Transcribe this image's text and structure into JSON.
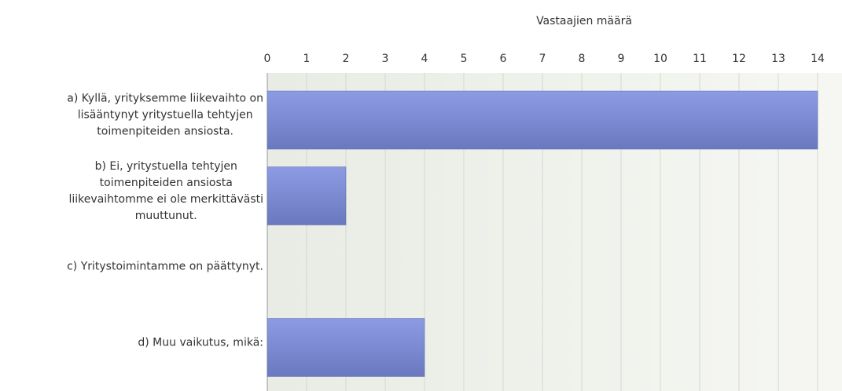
{
  "chart_data": {
    "type": "bar",
    "orientation": "horizontal",
    "x_label": "Vastaajien määrä",
    "categories": [
      [
        "a) Kyllä, yrityksemme liikevaihto on",
        "lisääntynyt yritystuella tehtyjen",
        "toimenpiteiden ansiosta."
      ],
      [
        "b) Ei, yritystuella tehtyjen",
        "toimenpiteiden ansiosta",
        "liikevaihtomme ei ole merkittävästi",
        "muuttunut."
      ],
      [
        "c) Yritystoimintamme on päättynyt."
      ],
      [
        "d) Muu vaikutus, mikä:"
      ]
    ],
    "values": [
      14,
      2,
      0,
      4
    ],
    "color": "#8090d8",
    "xlim": [
      0,
      14
    ],
    "xticks": [
      0,
      1,
      2,
      3,
      4,
      5,
      6,
      7,
      8,
      9,
      10,
      11,
      12,
      13,
      14
    ],
    "grid": true
  }
}
